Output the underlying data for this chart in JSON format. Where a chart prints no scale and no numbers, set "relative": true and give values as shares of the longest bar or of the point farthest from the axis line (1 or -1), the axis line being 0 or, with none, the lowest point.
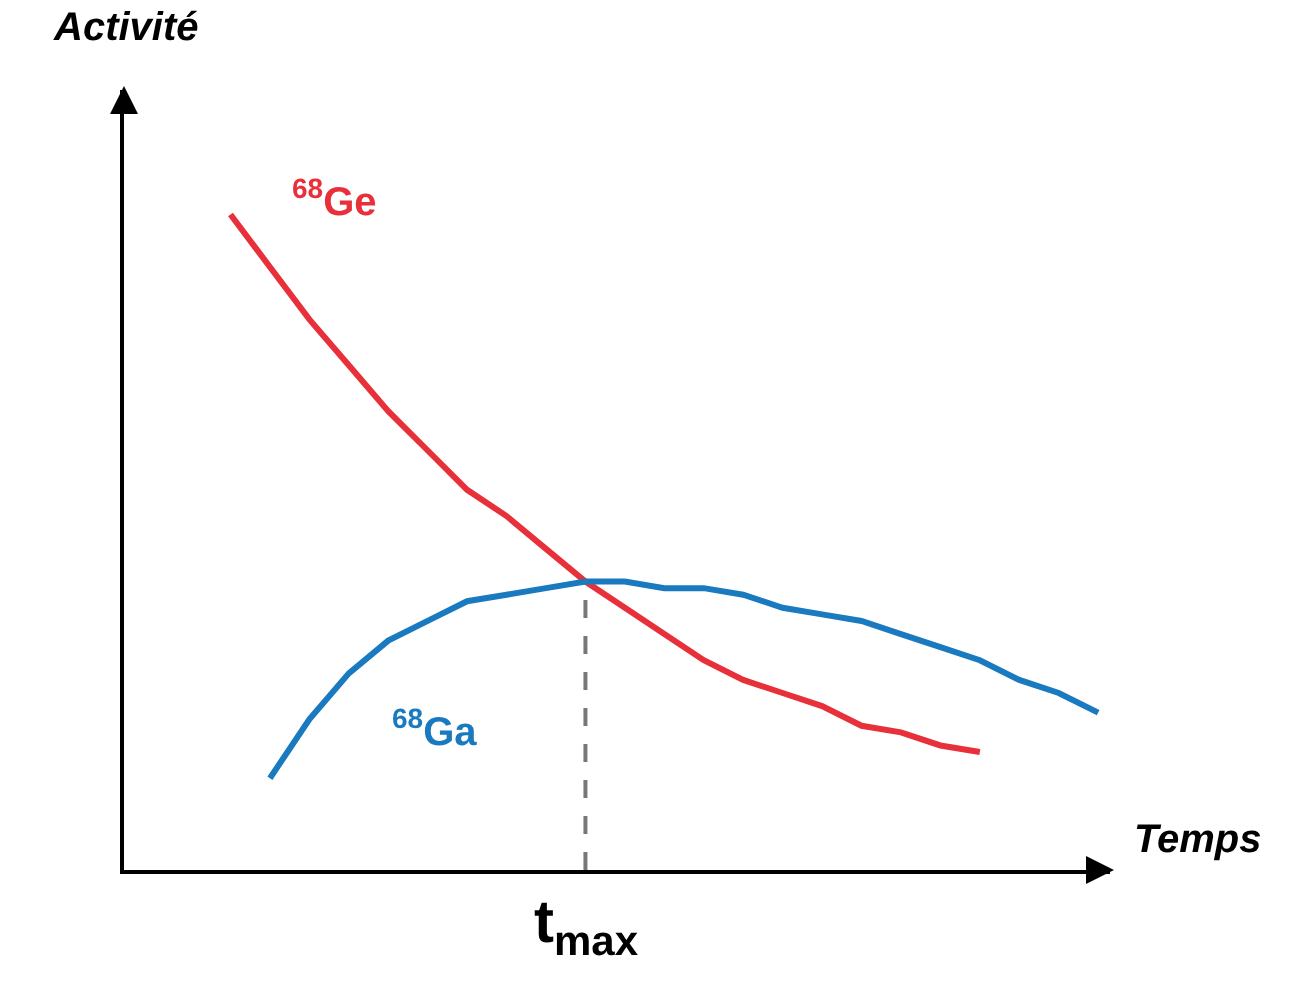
{
  "chart_data": {
    "type": "line",
    "relative": true,
    "xlabel": "Temps",
    "ylabel": "Activité",
    "categories": [
      null,
      null,
      null,
      null,
      null,
      null,
      null,
      null,
      null,
      null,
      null,
      null,
      null,
      null,
      null,
      null,
      null,
      null,
      null,
      null,
      null,
      null,
      null
    ],
    "series": [
      {
        "name": "$^{68}$Ge",
        "color": "#e8303a",
        "values": [
          1.0,
          0.92,
          0.84,
          0.77,
          0.7,
          0.64,
          0.58,
          0.54,
          0.49,
          0.44,
          0.4,
          0.36,
          0.32,
          0.29,
          0.27,
          0.25,
          0.22,
          0.21,
          0.19,
          0.18,
          null,
          null,
          null
        ]
      },
      {
        "name": "$^{68}$Ga",
        "color": "#1a7abf",
        "values": [
          null,
          0.14,
          0.23,
          0.3,
          0.35,
          0.38,
          0.41,
          0.42,
          0.43,
          0.44,
          0.44,
          0.43,
          0.43,
          0.42,
          0.4,
          0.39,
          0.38,
          0.36,
          0.34,
          0.32,
          0.29,
          0.27,
          0.24
        ]
      }
    ],
    "annotations": [
      "t$_{max}$"
    ],
    "grid": false,
    "legend": false,
    "marker": "none",
    "line_style": "solid"
  }
}
